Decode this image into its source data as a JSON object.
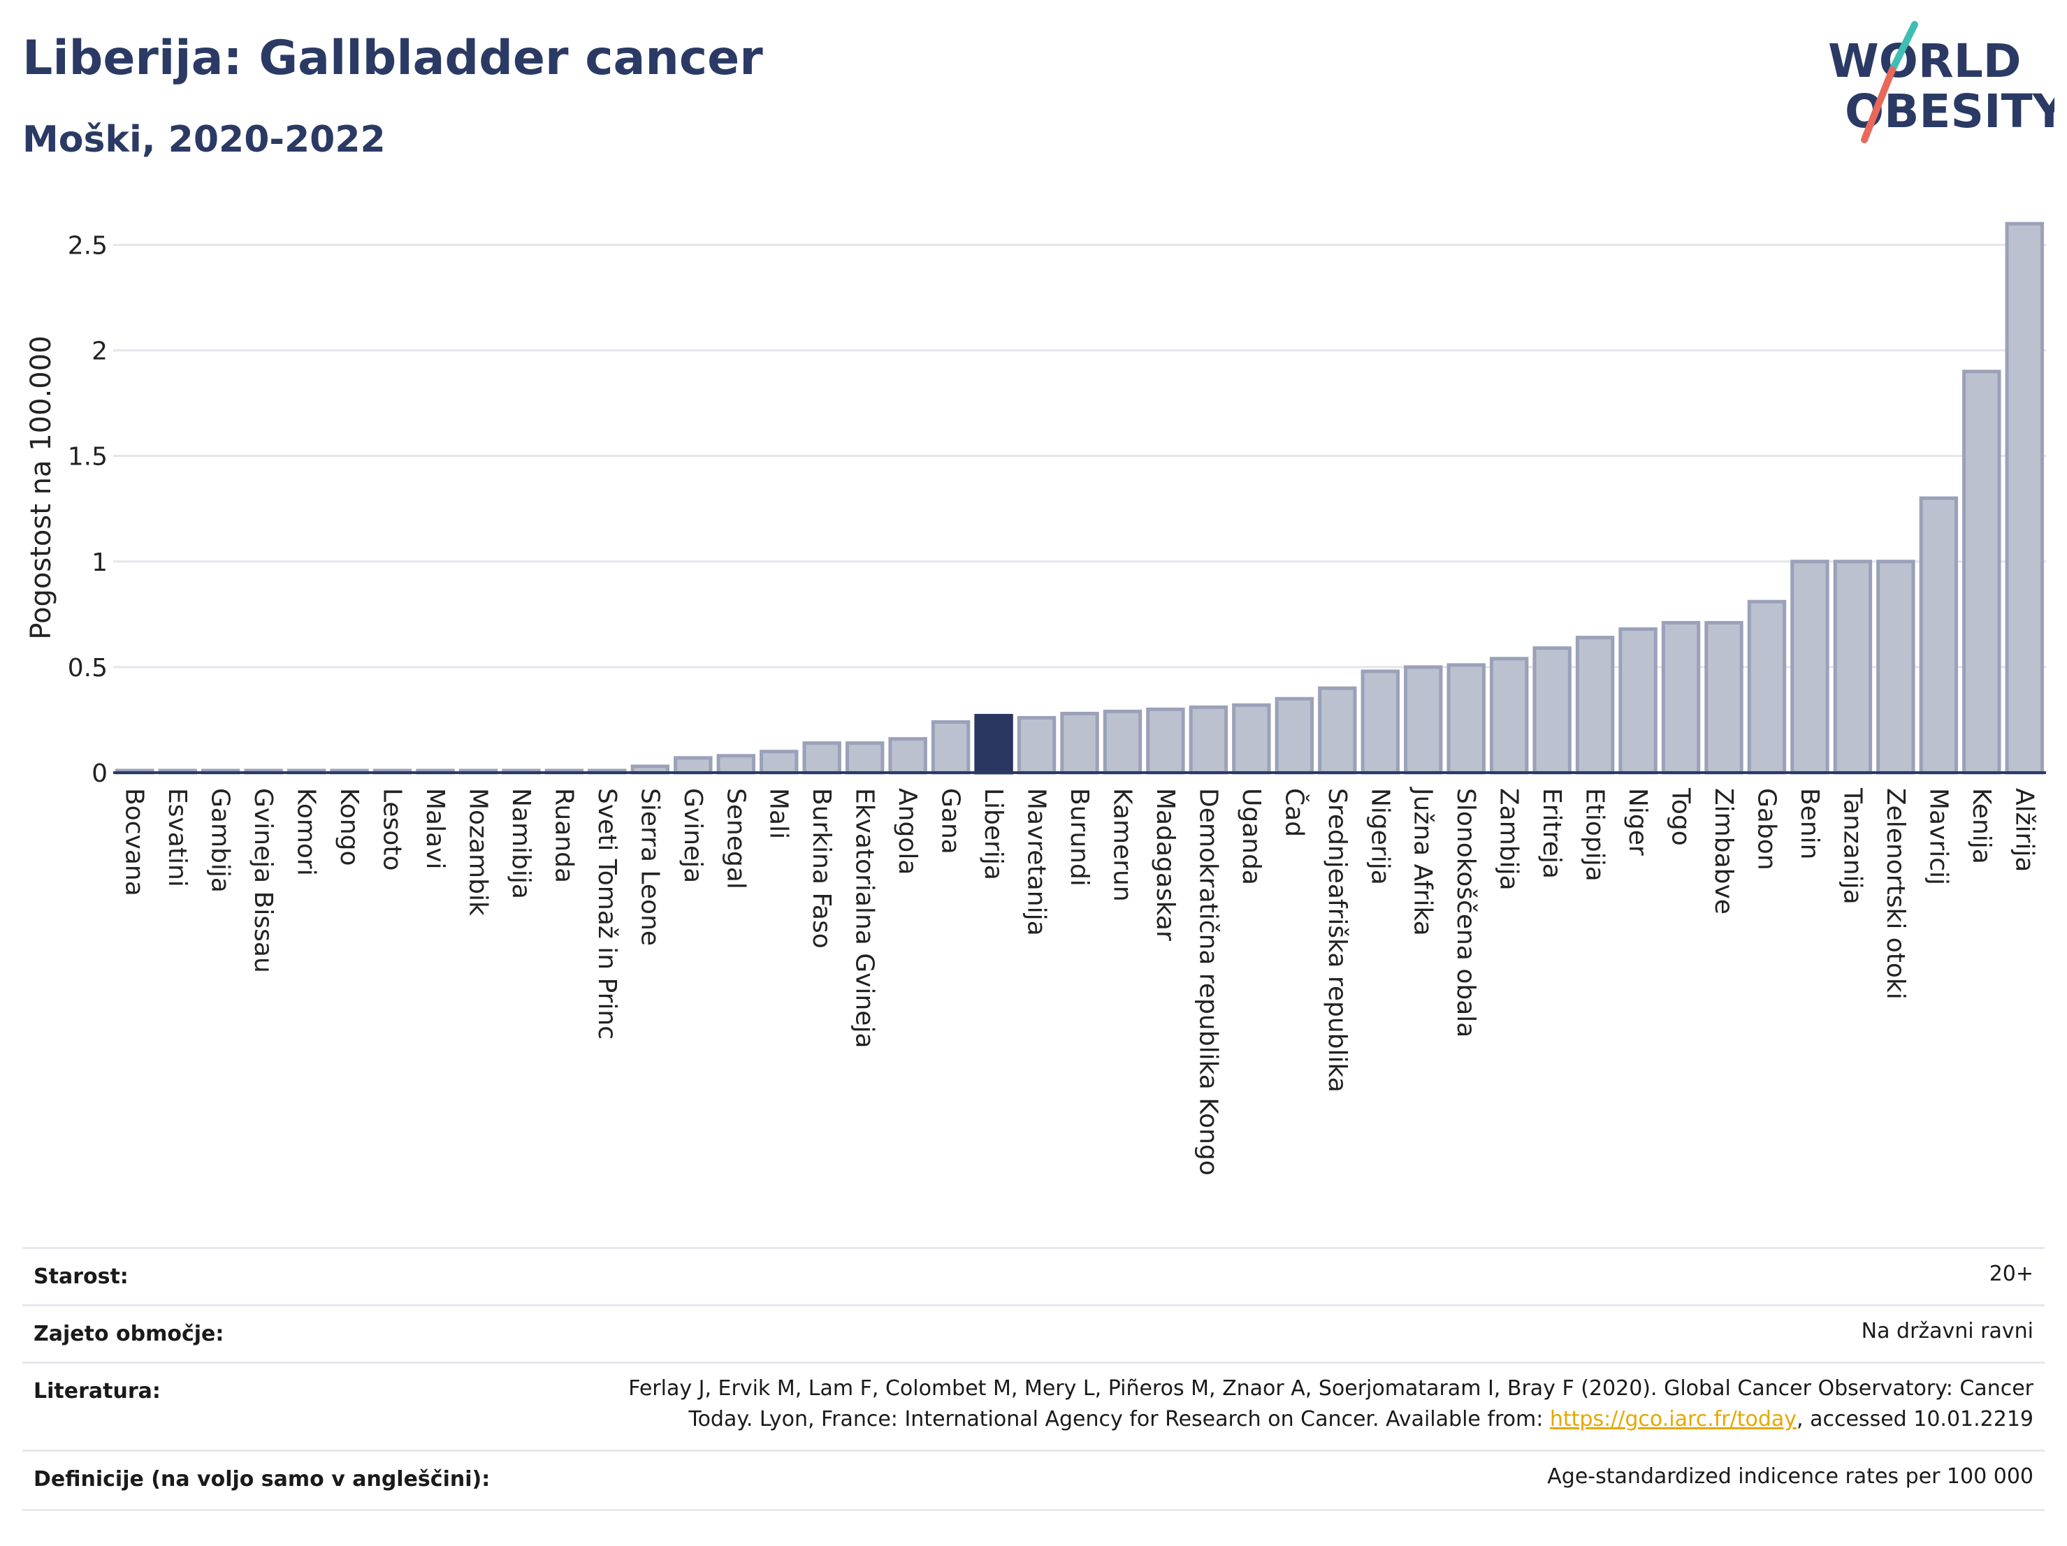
{
  "header": {
    "title": "Liberija: Gallbladder cancer",
    "subtitle": "Moški, 2020-2022"
  },
  "logo": {
    "line1": "WORLD",
    "line2": "OBESITY",
    "text_color": "#2b3a64",
    "slash_teal": "#3fbfb4",
    "slash_red": "#e8685a"
  },
  "colors": {
    "bar": "#bcc1d0",
    "bar_border": "#9aa1b8",
    "highlight": "#283660",
    "grid": "#e3e5ea",
    "axis": "#2b3a64"
  },
  "chart_data": {
    "type": "bar",
    "ylabel": "Pogostost na 100.000",
    "ylim": [
      0,
      2.7
    ],
    "yticks": [
      0,
      0.5,
      1,
      1.5,
      2,
      2.5
    ],
    "ytick_labels": [
      "0",
      "0.5",
      "1",
      "1.5",
      "2",
      "2.5"
    ],
    "grid": true,
    "highlight": "Liberija",
    "categories": [
      "Bocvana",
      "Esvatini",
      "Gambija",
      "Gvineja Bissau",
      "Komori",
      "Kongo",
      "Lesoto",
      "Malavi",
      "Mozambik",
      "Namibija",
      "Ruanda",
      "Sveti Tomaž in Princ",
      "Sierra Leone",
      "Gvineja",
      "Senegal",
      "Mali",
      "Burkina Faso",
      "Ekvatorialna Gvineja",
      "Angola",
      "Gana",
      "Liberija",
      "Mavretanija",
      "Burundi",
      "Kamerun",
      "Madagaskar",
      "Demokratična republika Kongo",
      "Uganda",
      "Čad",
      "Srednjeafriška republika",
      "Nigerija",
      "Južna Afrika",
      "Slonokoščena obala",
      "Zambija",
      "Eritreja",
      "Etiopija",
      "Niger",
      "Togo",
      "Zimbabve",
      "Gabon",
      "Benin",
      "Tanzanija",
      "Zelenortski otoki",
      "Mavricij",
      "Kenija",
      "Alžirija"
    ],
    "values": [
      0.01,
      0.01,
      0.01,
      0.01,
      0.01,
      0.01,
      0.01,
      0.01,
      0.01,
      0.01,
      0.01,
      0.01,
      0.03,
      0.07,
      0.08,
      0.1,
      0.14,
      0.14,
      0.16,
      0.24,
      0.27,
      0.26,
      0.28,
      0.29,
      0.3,
      0.31,
      0.32,
      0.35,
      0.4,
      0.48,
      0.5,
      0.51,
      0.54,
      0.59,
      0.64,
      0.68,
      0.71,
      0.71,
      0.81,
      1.0,
      1.0,
      1.0,
      1.3,
      1.9,
      2.6
    ]
  },
  "info": {
    "rows": [
      {
        "label": "Starost:",
        "value": "20+"
      },
      {
        "label": "Zajeto območje:",
        "value": "Na državni ravni"
      },
      {
        "label": "Literatura:",
        "value_line1": "Ferlay J, Ervik M, Lam F, Colombet M, Mery L, Piñeros M, Znaor A, Soerjomataram I, Bray F (2020). Global Cancer Observatory: Cancer",
        "value_line2_pre": "Today. Lyon, France: International Agency for Research on Cancer. Available from: ",
        "value_link": "https://gco.iarc.fr/today",
        "value_line2_post": ", accessed 10.01.2219"
      },
      {
        "label": "Definicije (na voljo samo v angleščini):",
        "value": "Age-standardized indicence rates per 100 000"
      }
    ]
  }
}
